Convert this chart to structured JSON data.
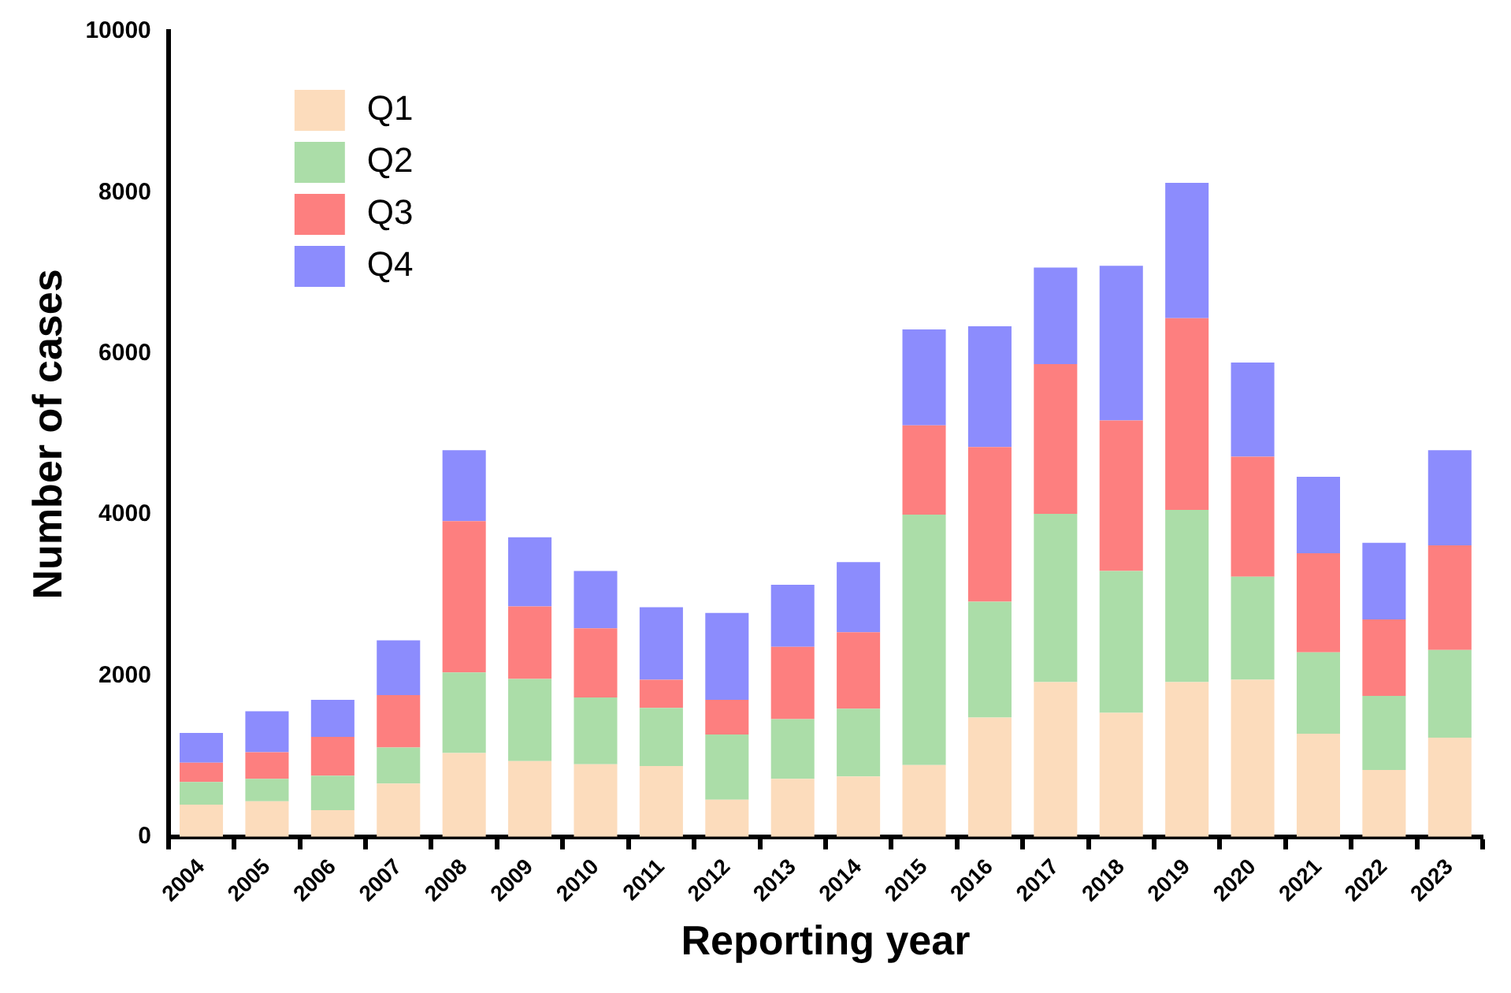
{
  "chart_data": {
    "type": "bar",
    "stacked": true,
    "xlabel": "Reporting year",
    "ylabel": "Number of cases",
    "categories": [
      "2004",
      "2005",
      "2006",
      "2007",
      "2008",
      "2009",
      "2010",
      "2011",
      "2012",
      "2013",
      "2014",
      "2015",
      "2016",
      "2017",
      "2018",
      "2019",
      "2020",
      "2021",
      "2022",
      "2023"
    ],
    "series": [
      {
        "name": "Q1",
        "color": "#fcdcbc",
        "values": [
          400,
          440,
          330,
          660,
          1040,
          940,
          900,
          880,
          460,
          720,
          750,
          890,
          1480,
          1920,
          1540,
          1920,
          1950,
          1280,
          830,
          1230
        ]
      },
      {
        "name": "Q2",
        "color": "#abdda8",
        "values": [
          280,
          280,
          430,
          450,
          1000,
          1020,
          830,
          720,
          810,
          740,
          840,
          3110,
          1440,
          2090,
          1760,
          2140,
          1280,
          1010,
          920,
          1090
        ]
      },
      {
        "name": "Q3",
        "color": "#fd7f7f",
        "values": [
          240,
          330,
          480,
          650,
          1880,
          900,
          860,
          350,
          430,
          900,
          950,
          1110,
          1920,
          1860,
          1870,
          2380,
          1490,
          1230,
          950,
          1300
        ]
      },
      {
        "name": "Q4",
        "color": "#8c8cfd",
        "values": [
          370,
          510,
          460,
          680,
          880,
          860,
          710,
          900,
          1080,
          770,
          870,
          1190,
          1500,
          1200,
          1920,
          1680,
          1170,
          950,
          950,
          1180
        ]
      }
    ],
    "ylim": [
      0,
      10000
    ],
    "yticks": [
      0,
      2000,
      4000,
      6000,
      8000,
      10000
    ],
    "grid": false,
    "legend": "top left"
  }
}
